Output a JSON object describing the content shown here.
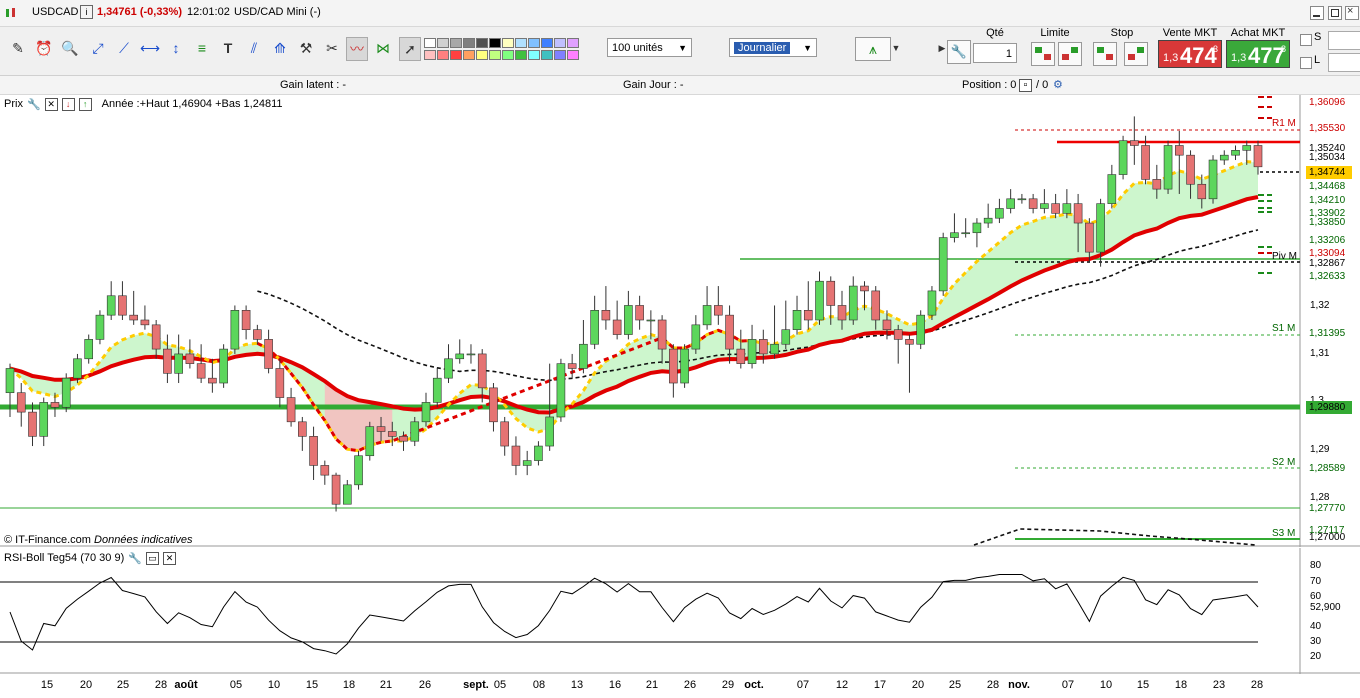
{
  "window": {
    "symbol": "USDCAD",
    "quote": "1,34761 (-0,33%)",
    "time": "12:01:02",
    "title": "USD/CAD Mini (-)"
  },
  "toolbar": {
    "units_select": "100 unités",
    "period_select": "Journalier",
    "qty_label": "Qté",
    "qty_value": "1",
    "limit_label": "Limite",
    "stop_label": "Stop",
    "sell_label": "Vente MKT",
    "sell_small": "1,3",
    "sell_big": "474",
    "sell_sup": "3",
    "buy_label": "Achat MKT",
    "buy_small": "1,3",
    "buy_big": "477",
    "buy_sup": "8",
    "s_label": "S",
    "l_label": "L",
    "colors": [
      "#ffffff",
      "#d0d0d0",
      "#a8a8a8",
      "#808080",
      "#505050",
      "#000000",
      "#ffffc0",
      "#b0e0ff",
      "#80c0ff",
      "#4080ff",
      "#c0c0ff",
      "#e0a0ff",
      "#ffc0c0",
      "#ff8080",
      "#ff4040",
      "#ffa060",
      "#ffff80",
      "#c0ff80",
      "#80ff80",
      "#40c040",
      "#80ffff",
      "#40c0c0",
      "#8080ff",
      "#ff80ff"
    ]
  },
  "info": {
    "gain_latent": "Gain latent :  -",
    "gain_jour": "Gain Jour :  -",
    "position": "Position : 0",
    "position_sep": "/ 0"
  },
  "price_panel": {
    "header": "Prix",
    "annotation": "Année :+Haut 1,46904 +Bas 1,24811",
    "copyright": "© IT-Finance.com",
    "copyright_note": "Données indicatives",
    "axis_labels": [
      "1,32",
      "1,31",
      "1,3",
      "1,29",
      "1,28"
    ],
    "price_tags": [
      {
        "text": "1,36096",
        "color": "#cc0000"
      },
      {
        "text": "1,35530",
        "color": "#cc0000"
      },
      {
        "text": "1,35240",
        "color": "#000000"
      },
      {
        "text": "1,35034",
        "color": "#000000"
      },
      {
        "text": "1,34744",
        "color": "#000000",
        "bg": "#ffcc00"
      },
      {
        "text": "1,34468",
        "color": "#006600"
      },
      {
        "text": "1,34210",
        "color": "#006600"
      },
      {
        "text": "1,33902",
        "color": "#006600"
      },
      {
        "text": "1,33850",
        "color": "#006600"
      },
      {
        "text": "1,33206",
        "color": "#006600"
      },
      {
        "text": "1,33094",
        "color": "#cc0000"
      },
      {
        "text": "1,32867",
        "color": "#000000"
      },
      {
        "text": "1,32633",
        "color": "#006600"
      },
      {
        "text": "1,31395",
        "color": "#006600"
      },
      {
        "text": "1,29880",
        "color": "#000000",
        "bg": "#33aa33"
      },
      {
        "text": "1,28589",
        "color": "#006600"
      },
      {
        "text": "1,27770",
        "color": "#006600"
      },
      {
        "text": "1,27117",
        "color": "#006600"
      },
      {
        "text": "1,27000",
        "color": "#000000"
      }
    ],
    "pivot_labels": [
      "R1 M",
      "Piv M",
      "S1 M",
      "S2 M",
      "S3 M"
    ]
  },
  "rsi_panel": {
    "header": "RSI-Boll Teg54 (70 30 9)",
    "axis_labels": [
      "80",
      "70",
      "60",
      "52,900",
      "40",
      "30",
      "20"
    ]
  },
  "x_axis": [
    {
      "text": "15",
      "bold": false
    },
    {
      "text": "20",
      "bold": false
    },
    {
      "text": "25",
      "bold": false
    },
    {
      "text": "28",
      "bold": false
    },
    {
      "text": "août",
      "bold": true
    },
    {
      "text": "05",
      "bold": false
    },
    {
      "text": "10",
      "bold": false
    },
    {
      "text": "15",
      "bold": false
    },
    {
      "text": "18",
      "bold": false
    },
    {
      "text": "21",
      "bold": false
    },
    {
      "text": "26",
      "bold": false
    },
    {
      "text": "sept.",
      "bold": true
    },
    {
      "text": "05",
      "bold": false
    },
    {
      "text": "08",
      "bold": false
    },
    {
      "text": "13",
      "bold": false
    },
    {
      "text": "16",
      "bold": false
    },
    {
      "text": "21",
      "bold": false
    },
    {
      "text": "26",
      "bold": false
    },
    {
      "text": "29",
      "bold": false
    },
    {
      "text": "oct.",
      "bold": true
    },
    {
      "text": "07",
      "bold": false
    },
    {
      "text": "12",
      "bold": false
    },
    {
      "text": "17",
      "bold": false
    },
    {
      "text": "20",
      "bold": false
    },
    {
      "text": "25",
      "bold": false
    },
    {
      "text": "28",
      "bold": false
    },
    {
      "text": "nov.",
      "bold": true
    },
    {
      "text": "07",
      "bold": false
    },
    {
      "text": "10",
      "bold": false
    },
    {
      "text": "15",
      "bold": false
    },
    {
      "text": "18",
      "bold": false
    },
    {
      "text": "23",
      "bold": false
    },
    {
      "text": "28",
      "bold": false
    }
  ],
  "chart_data": {
    "type": "candlestick",
    "y_range": [
      1.27,
      1.362
    ],
    "candles": [
      [
        1.301,
        1.306,
        1.296,
        1.307
      ],
      [
        1.301,
        1.297,
        1.294,
        1.303
      ],
      [
        1.297,
        1.292,
        1.29,
        1.299
      ],
      [
        1.292,
        1.299,
        1.29,
        1.3
      ],
      [
        1.299,
        1.298,
        1.296,
        1.301
      ],
      [
        1.298,
        1.304,
        1.297,
        1.305
      ],
      [
        1.304,
        1.308,
        1.303,
        1.309
      ],
      [
        1.308,
        1.312,
        1.307,
        1.313
      ],
      [
        1.312,
        1.317,
        1.311,
        1.318
      ],
      [
        1.317,
        1.321,
        1.316,
        1.324
      ],
      [
        1.321,
        1.317,
        1.316,
        1.324
      ],
      [
        1.317,
        1.316,
        1.315,
        1.322
      ],
      [
        1.316,
        1.315,
        1.314,
        1.319
      ],
      [
        1.315,
        1.31,
        1.308,
        1.316
      ],
      [
        1.31,
        1.305,
        1.303,
        1.313
      ],
      [
        1.305,
        1.309,
        1.303,
        1.313
      ],
      [
        1.309,
        1.307,
        1.306,
        1.312
      ],
      [
        1.307,
        1.304,
        1.303,
        1.311
      ],
      [
        1.304,
        1.303,
        1.301,
        1.308
      ],
      [
        1.303,
        1.31,
        1.302,
        1.311
      ],
      [
        1.31,
        1.318,
        1.309,
        1.319
      ],
      [
        1.318,
        1.314,
        1.312,
        1.319
      ],
      [
        1.314,
        1.312,
        1.311,
        1.315
      ],
      [
        1.312,
        1.306,
        1.305,
        1.314
      ],
      [
        1.306,
        1.3,
        1.298,
        1.308
      ],
      [
        1.3,
        1.295,
        1.294,
        1.302
      ],
      [
        1.295,
        1.292,
        1.289,
        1.296
      ],
      [
        1.292,
        1.286,
        1.283,
        1.294
      ],
      [
        1.286,
        1.284,
        1.282,
        1.287
      ],
      [
        1.284,
        1.278,
        1.2765,
        1.2845
      ],
      [
        1.278,
        1.282,
        1.278,
        1.283
      ],
      [
        1.282,
        1.288,
        1.281,
        1.289
      ],
      [
        1.288,
        1.294,
        1.287,
        1.295
      ],
      [
        1.294,
        1.293,
        1.291,
        1.296
      ],
      [
        1.293,
        1.292,
        1.29,
        1.295
      ],
      [
        1.292,
        1.291,
        1.289,
        1.293
      ],
      [
        1.291,
        1.295,
        1.29,
        1.296
      ],
      [
        1.295,
        1.299,
        1.294,
        1.301
      ],
      [
        1.299,
        1.304,
        1.298,
        1.306
      ],
      [
        1.304,
        1.308,
        1.303,
        1.311
      ],
      [
        1.308,
        1.309,
        1.307,
        1.312
      ],
      [
        1.309,
        1.309,
        1.307,
        1.311
      ],
      [
        1.309,
        1.302,
        1.299,
        1.31
      ],
      [
        1.302,
        1.295,
        1.293,
        1.303
      ],
      [
        1.295,
        1.29,
        1.288,
        1.296
      ],
      [
        1.29,
        1.286,
        1.284,
        1.292
      ],
      [
        1.286,
        1.287,
        1.284,
        1.289
      ],
      [
        1.287,
        1.29,
        1.286,
        1.291
      ],
      [
        1.29,
        1.296,
        1.289,
        1.307
      ],
      [
        1.296,
        1.307,
        1.295,
        1.308
      ],
      [
        1.307,
        1.306,
        1.304,
        1.309
      ],
      [
        1.306,
        1.311,
        1.305,
        1.316
      ],
      [
        1.311,
        1.318,
        1.31,
        1.321
      ],
      [
        1.318,
        1.316,
        1.314,
        1.323
      ],
      [
        1.316,
        1.313,
        1.312,
        1.32
      ],
      [
        1.313,
        1.319,
        1.312,
        1.322
      ],
      [
        1.319,
        1.316,
        1.314,
        1.321
      ],
      [
        1.316,
        1.316,
        1.312,
        1.318
      ],
      [
        1.316,
        1.31,
        1.307,
        1.317
      ],
      [
        1.31,
        1.303,
        1.3,
        1.311
      ],
      [
        1.303,
        1.31,
        1.302,
        1.311
      ],
      [
        1.31,
        1.315,
        1.309,
        1.317
      ],
      [
        1.315,
        1.319,
        1.314,
        1.323
      ],
      [
        1.319,
        1.317,
        1.315,
        1.323
      ],
      [
        1.317,
        1.31,
        1.307,
        1.319
      ],
      [
        1.31,
        1.307,
        1.306,
        1.314
      ],
      [
        1.307,
        1.312,
        1.306,
        1.315
      ],
      [
        1.312,
        1.309,
        1.307,
        1.314
      ],
      [
        1.309,
        1.311,
        1.308,
        1.319
      ],
      [
        1.311,
        1.314,
        1.31,
        1.32
      ],
      [
        1.314,
        1.318,
        1.313,
        1.321
      ],
      [
        1.318,
        1.316,
        1.314,
        1.324
      ],
      [
        1.316,
        1.324,
        1.315,
        1.326
      ],
      [
        1.324,
        1.319,
        1.315,
        1.325
      ],
      [
        1.319,
        1.316,
        1.314,
        1.322
      ],
      [
        1.316,
        1.323,
        1.315,
        1.325
      ],
      [
        1.323,
        1.322,
        1.318,
        1.324
      ],
      [
        1.322,
        1.316,
        1.314,
        1.323
      ],
      [
        1.316,
        1.314,
        1.312,
        1.318
      ],
      [
        1.314,
        1.312,
        1.307,
        1.315
      ],
      [
        1.312,
        1.311,
        1.301,
        1.313
      ],
      [
        1.311,
        1.317,
        1.31,
        1.318
      ],
      [
        1.317,
        1.322,
        1.316,
        1.323
      ],
      [
        1.322,
        1.333,
        1.321,
        1.334
      ],
      [
        1.333,
        1.334,
        1.332,
        1.338
      ],
      [
        1.334,
        1.334,
        1.333,
        1.337
      ],
      [
        1.334,
        1.336,
        1.331,
        1.337
      ],
      [
        1.336,
        1.337,
        1.335,
        1.34
      ],
      [
        1.337,
        1.339,
        1.336,
        1.341
      ],
      [
        1.339,
        1.341,
        1.338,
        1.343
      ],
      [
        1.341,
        1.341,
        1.34,
        1.342
      ],
      [
        1.341,
        1.339,
        1.338,
        1.342
      ],
      [
        1.339,
        1.34,
        1.338,
        1.343
      ],
      [
        1.34,
        1.338,
        1.337,
        1.342
      ],
      [
        1.338,
        1.34,
        1.337,
        1.343
      ],
      [
        1.34,
        1.336,
        1.33,
        1.342
      ],
      [
        1.336,
        1.33,
        1.328,
        1.337
      ],
      [
        1.33,
        1.34,
        1.327,
        1.341
      ],
      [
        1.34,
        1.346,
        1.339,
        1.348
      ],
      [
        1.346,
        1.353,
        1.345,
        1.354
      ],
      [
        1.353,
        1.352,
        1.348,
        1.358
      ],
      [
        1.352,
        1.345,
        1.344,
        1.354
      ],
      [
        1.345,
        1.343,
        1.341,
        1.348
      ],
      [
        1.343,
        1.352,
        1.342,
        1.353
      ],
      [
        1.352,
        1.35,
        1.342,
        1.355
      ],
      [
        1.35,
        1.344,
        1.341,
        1.351
      ],
      [
        1.344,
        1.341,
        1.339,
        1.346
      ],
      [
        1.341,
        1.349,
        1.34,
        1.35
      ],
      [
        1.349,
        1.35,
        1.348,
        1.351
      ],
      [
        1.35,
        1.351,
        1.349,
        1.352
      ],
      [
        1.351,
        1.352,
        1.348,
        1.353
      ],
      [
        1.352,
        1.3476,
        1.346,
        1.353
      ]
    ]
  }
}
